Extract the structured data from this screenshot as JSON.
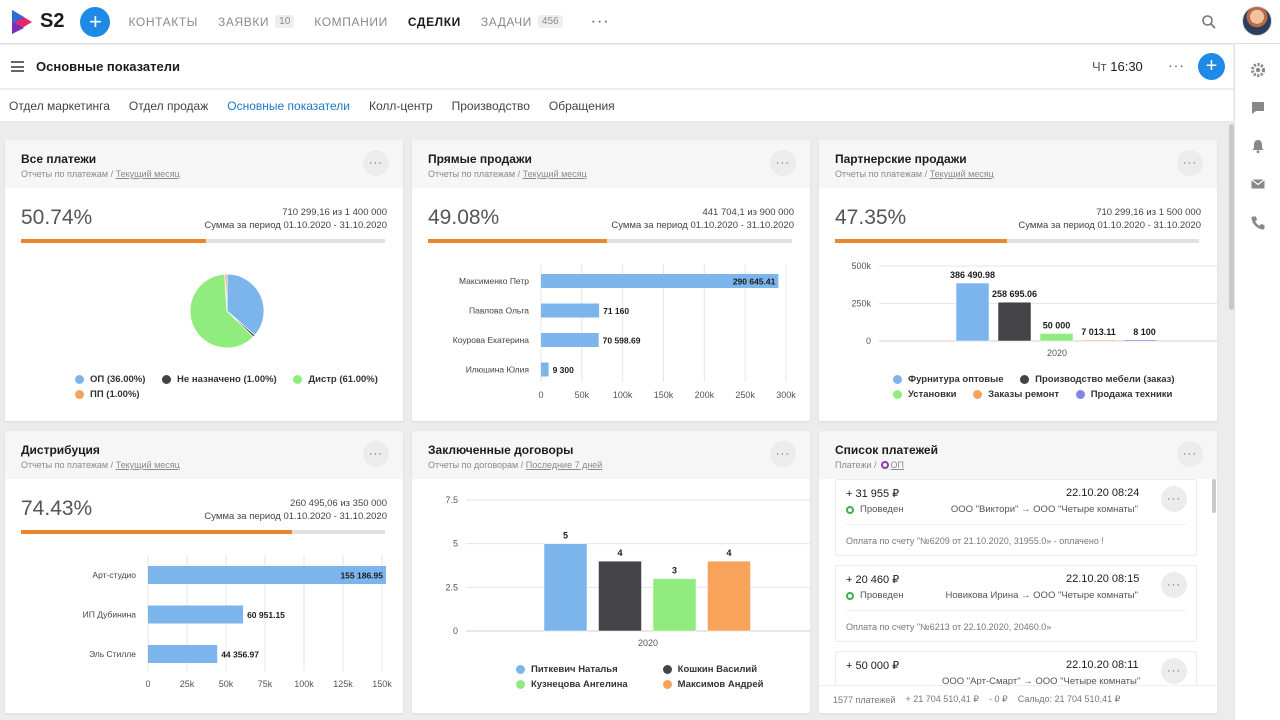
{
  "app": {
    "logo_text": "S2"
  },
  "nav": [
    {
      "label": "КОНТАКТЫ",
      "badge": null,
      "active": false
    },
    {
      "label": "ЗАЯВКИ",
      "badge": "10",
      "active": false
    },
    {
      "label": "КОМПАНИИ",
      "badge": null,
      "active": false
    },
    {
      "label": "СДЕЛКИ",
      "badge": null,
      "active": true
    },
    {
      "label": "ЗАДАЧИ",
      "badge": "456",
      "active": false
    }
  ],
  "nav_more": "···",
  "header": {
    "title": "Основные показатели",
    "day": "Чт",
    "time": "16:30",
    "more": "···",
    "plus": "+"
  },
  "tabs": [
    {
      "label": "Отдел маркетинга",
      "active": false
    },
    {
      "label": "Отдел продаж",
      "active": false
    },
    {
      "label": "Основные показатели",
      "active": true
    },
    {
      "label": "Колл-центр",
      "active": false
    },
    {
      "label": "Производство",
      "active": false
    },
    {
      "label": "Обращения",
      "active": false
    }
  ],
  "icons": {
    "top_search": "search-icon",
    "right_sidebar": [
      "gear-icon",
      "chat-icon",
      "bell-icon",
      "mail-icon",
      "phone-icon"
    ]
  },
  "colors": {
    "accent": "#1e8ae6",
    "progress": "#e8872d",
    "blue_bar": "#7cb5ec",
    "green": "#90ed7d",
    "dark": "#434348",
    "orange": "#f7a35c",
    "purple": "#8085e9"
  },
  "cards": {
    "all_payments": {
      "title": "Все платежи",
      "sub_a": "Отчеты по платежам",
      "sub_sep": "/",
      "sub_b": "Текущий месяц",
      "more": "···",
      "percent": "50.74%",
      "progress": 0.5074,
      "amount": "710 299,16 из 1 400 000",
      "period": "Сумма за период 01.10.2020 - 31.10.2020"
    },
    "direct_sales": {
      "title": "Прямые продажи",
      "sub_a": "Отчеты по платежам",
      "sub_sep": "/",
      "sub_b": "Текущий месяц",
      "more": "···",
      "percent": "49.08%",
      "progress": 0.4908,
      "amount": "441 704,1 из 900 000",
      "period": "Сумма за период 01.10.2020 - 31.10.2020"
    },
    "partner_sales": {
      "title": "Партнерские продажи",
      "sub_a": "Отчеты по платежам",
      "sub_sep": "/",
      "sub_b": "Текущий месяц",
      "more": "···",
      "percent": "47.35%",
      "progress": 0.4735,
      "amount": "710 299,16 из 1 500 000",
      "period": "Сумма за период 01.10.2020 - 31.10.2020"
    },
    "distribution": {
      "title": "Дистрибуция",
      "sub_a": "Отчеты по платежам",
      "sub_sep": "/",
      "sub_b": "Текущий месяц",
      "more": "···",
      "percent": "74.43%",
      "progress": 0.7443,
      "amount": "260 495,06 из 350 000",
      "period": "Сумма за период 01.10.2020 - 31.10.2020"
    },
    "contracts": {
      "title": "Заключенные договоры",
      "sub_a": "Отчеты по договорам",
      "sub_sep": "/",
      "sub_b": "Последние 7 дней",
      "more": "···"
    },
    "payments_list": {
      "title": "Список платежей",
      "sub_a": "Платежи",
      "sub_sep": "/",
      "sub_b": "ОП",
      "more": "···",
      "items": [
        {
          "amount": "+ 31 955 ₽",
          "date": "22.10.20 08:24",
          "status": "Проведен",
          "from": "ООО \"Виктори\"",
          "arrow": "→",
          "to": "ООО \"Четыре комнаты\"",
          "note": "Оплата по счету \"№6209 от 21.10.2020, 31955.0» - оплачено !",
          "more": "···"
        },
        {
          "amount": "+ 20 460 ₽",
          "date": "22.10.20 08:15",
          "status": "Проведен",
          "from": "Новикова Ирина",
          "arrow": "→",
          "to": "ООО \"Четыре комнаты\"",
          "note": "Оплата по счету \"№6213 от 22.10.2020, 20460.0»",
          "more": "···"
        },
        {
          "amount": "+ 50 000 ₽",
          "date": "22.10.20 08:11",
          "status": "",
          "from": "ООО \"Арт-Смарт\"",
          "arrow": "→",
          "to": "ООО \"Четыре комнаты\"",
          "note": "",
          "more": "···"
        }
      ],
      "footer": {
        "count": "1577 платежей",
        "incoming": "+ 21 704 510,41 ₽",
        "outgoing": "- 0 ₽",
        "balance": "Сальдо: 21 704 510,41 ₽"
      }
    }
  },
  "chart_data": [
    {
      "id": "all_payments",
      "type": "pie",
      "slices": [
        {
          "name": "ОП (36.00%)",
          "value": 36.0,
          "color": "#7cb5ec"
        },
        {
          "name": "Не назначено (1.00%)",
          "value": 1.0,
          "color": "#434348"
        },
        {
          "name": "Дистр (61.00%)",
          "value": 61.0,
          "color": "#90ed7d"
        },
        {
          "name": "ПП (1.00%)",
          "value": 1.0,
          "color": "#f7a35c"
        }
      ]
    },
    {
      "id": "direct_sales",
      "type": "bar",
      "orientation": "horizontal",
      "categories": [
        "Максименко Петр",
        "Павлова Ольга",
        "Коурова Екатерина",
        "Илюшина Юлия"
      ],
      "values": [
        290645.41,
        71160,
        70598.69,
        9300
      ],
      "labels": [
        "290 645.41",
        "71 160",
        "70 598.69",
        "9 300"
      ],
      "xlim": [
        0,
        300000
      ],
      "xticks": [
        "0",
        "50k",
        "100k",
        "150k",
        "200k",
        "250k",
        "300k"
      ],
      "color": "#7cb5ec",
      "grid": true
    },
    {
      "id": "partner_sales",
      "type": "bar",
      "categories": [
        "2020"
      ],
      "series": [
        {
          "name": "Фурнитура оптовые",
          "value": 386490.98,
          "label": "386 490.98",
          "color": "#7cb5ec"
        },
        {
          "name": "Производство мебели (заказ)",
          "value": 258695.06,
          "label": "258 695.06",
          "color": "#434348"
        },
        {
          "name": "Установки",
          "value": 50000,
          "label": "50 000",
          "color": "#90ed7d"
        },
        {
          "name": "Заказы ремонт",
          "value": 7013.11,
          "label": "7 013.11",
          "color": "#f7a35c"
        },
        {
          "name": "Продажа техники",
          "value": 8100,
          "label": "8 100",
          "color": "#8085e9"
        }
      ],
      "ylim": [
        0,
        500000
      ],
      "yticks": [
        "0",
        "250k",
        "500k"
      ]
    },
    {
      "id": "distribution",
      "type": "bar",
      "orientation": "horizontal",
      "categories": [
        "Арт-студио",
        "ИП Дубинина",
        "Эль Стилле"
      ],
      "values": [
        155186.95,
        60951.15,
        44356.97
      ],
      "labels": [
        "155 186.95",
        "60 951.15",
        "44 356.97"
      ],
      "xlim": [
        0,
        150000
      ],
      "xticks": [
        "0",
        "25k",
        "50k",
        "75k",
        "100k",
        "125k",
        "150k"
      ],
      "color": "#7cb5ec",
      "grid": true
    },
    {
      "id": "contracts",
      "type": "bar",
      "categories": [
        "2020"
      ],
      "series": [
        {
          "name": "Питкевич Наталья",
          "value": 5,
          "label": "5",
          "color": "#7cb5ec"
        },
        {
          "name": "Кошкин Василий",
          "value": 4,
          "label": "4",
          "color": "#434348"
        },
        {
          "name": "Кузнецова Ангелина",
          "value": 3,
          "label": "3",
          "color": "#90ed7d"
        },
        {
          "name": "Максимов Андрей",
          "value": 4,
          "label": "4",
          "color": "#f7a35c"
        }
      ],
      "ylim": [
        0,
        7.5
      ],
      "yticks": [
        "0",
        "2.5",
        "5",
        "7.5"
      ]
    }
  ]
}
